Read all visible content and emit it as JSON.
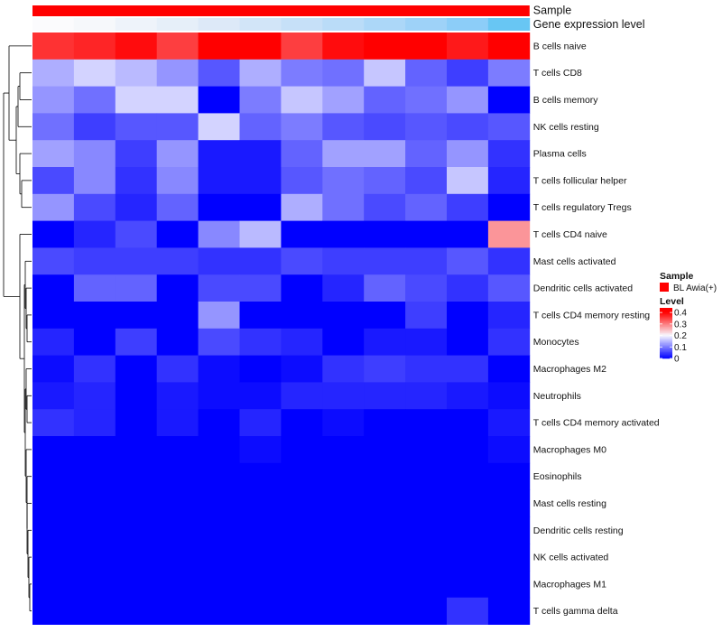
{
  "chart_data": {
    "type": "heatmap",
    "annotation_tracks": [
      {
        "name": "Sample",
        "legend_entry": "BL Awia(+)",
        "color": "#ff0000"
      },
      {
        "name": "Gene expression level",
        "colors": [
          "#fbfbfd",
          "#f6f8fb",
          "#eef3fa",
          "#e6eff9",
          "#dde9f8",
          "#d2e5f8",
          "#c6e0f8",
          "#badcf8",
          "#acd7f8",
          "#9ed2f8",
          "#8ccdf8",
          "#68c6f3"
        ]
      }
    ],
    "rows": [
      "B cells naive",
      "T cells CD8",
      "B cells memory",
      "NK cells resting",
      "Plasma cells",
      "T cells follicular helper",
      "T cells regulatory  Tregs",
      "T cells CD4 naive",
      "Mast cells activated",
      "Dendritic cells activated",
      "T cells CD4 memory resting",
      "Monocytes",
      "Macrophages M2",
      "Neutrophils",
      "T cells CD4 memory activated",
      "Macrophages M0",
      "Eosinophils",
      "Mast cells resting",
      "Dendritic cells resting",
      "NK cells activated",
      "Macrophages M1",
      "T cells gamma delta"
    ],
    "n_columns": 12,
    "values": [
      [
        0.36,
        0.37,
        0.39,
        0.35,
        0.44,
        0.44,
        0.35,
        0.39,
        0.42,
        0.44,
        0.38,
        0.4
      ],
      [
        0.14,
        0.17,
        0.15,
        0.12,
        0.07,
        0.14,
        0.1,
        0.09,
        0.16,
        0.08,
        0.05,
        0.1
      ],
      [
        0.12,
        0.09,
        0.17,
        0.17,
        0.0,
        0.1,
        0.16,
        0.13,
        0.08,
        0.09,
        0.12,
        0.0
      ],
      [
        0.09,
        0.05,
        0.07,
        0.07,
        0.17,
        0.08,
        0.1,
        0.07,
        0.06,
        0.07,
        0.06,
        0.07
      ],
      [
        0.13,
        0.11,
        0.05,
        0.12,
        0.02,
        0.02,
        0.08,
        0.13,
        0.13,
        0.08,
        0.12,
        0.04
      ],
      [
        0.06,
        0.11,
        0.04,
        0.11,
        0.02,
        0.02,
        0.07,
        0.09,
        0.08,
        0.06,
        0.16,
        0.03
      ],
      [
        0.12,
        0.06,
        0.03,
        0.08,
        0.0,
        0.0,
        0.14,
        0.09,
        0.06,
        0.08,
        0.05,
        0.0
      ],
      [
        0.0,
        0.03,
        0.06,
        0.0,
        0.11,
        0.15,
        0.0,
        0.0,
        0.0,
        0.0,
        0.0,
        0.28
      ],
      [
        0.06,
        0.05,
        0.05,
        0.05,
        0.04,
        0.04,
        0.06,
        0.05,
        0.05,
        0.05,
        0.07,
        0.04
      ],
      [
        0.0,
        0.08,
        0.08,
        0.0,
        0.06,
        0.06,
        0.0,
        0.03,
        0.08,
        0.06,
        0.04,
        0.07
      ],
      [
        0.0,
        0.0,
        0.0,
        0.0,
        0.12,
        0.0,
        0.0,
        0.0,
        0.0,
        0.05,
        0.0,
        0.03
      ],
      [
        0.03,
        0.0,
        0.05,
        0.0,
        0.06,
        0.04,
        0.03,
        0.0,
        0.02,
        0.02,
        0.0,
        0.04
      ],
      [
        0.01,
        0.04,
        0.0,
        0.04,
        0.01,
        0.0,
        0.01,
        0.04,
        0.05,
        0.04,
        0.04,
        0.0
      ],
      [
        0.02,
        0.03,
        0.0,
        0.02,
        0.01,
        0.01,
        0.03,
        0.03,
        0.03,
        0.03,
        0.02,
        0.01
      ],
      [
        0.04,
        0.03,
        0.0,
        0.02,
        0.0,
        0.03,
        0.0,
        0.01,
        0.0,
        0.0,
        0.0,
        0.02
      ],
      [
        0.0,
        0.0,
        0.0,
        0.0,
        0.0,
        0.01,
        0.0,
        0.0,
        0.0,
        0.0,
        0.0,
        0.01
      ],
      [
        0.0,
        0.0,
        0.0,
        0.0,
        0.0,
        0.0,
        0.0,
        0.0,
        0.0,
        0.0,
        0.0,
        0.0
      ],
      [
        0.0,
        0.0,
        0.0,
        0.0,
        0.0,
        0.0,
        0.0,
        0.0,
        0.0,
        0.0,
        0.0,
        0.0
      ],
      [
        0.0,
        0.0,
        0.0,
        0.0,
        0.0,
        0.0,
        0.0,
        0.0,
        0.0,
        0.0,
        0.0,
        0.0
      ],
      [
        0.0,
        0.0,
        0.0,
        0.0,
        0.0,
        0.0,
        0.0,
        0.0,
        0.0,
        0.0,
        0.0,
        0.0
      ],
      [
        0.0,
        0.0,
        0.0,
        0.0,
        0.0,
        0.0,
        0.0,
        0.0,
        0.0,
        0.0,
        0.0,
        0.0
      ],
      [
        0.0,
        0.0,
        0.0,
        0.0,
        0.0,
        0.0,
        0.0,
        0.0,
        0.0,
        0.0,
        0.04,
        0.0
      ]
    ],
    "color_scale": {
      "stops": [
        0,
        0.2,
        0.4
      ],
      "colors": [
        "#0000ff",
        "#f8f8ff",
        "#ff0000"
      ],
      "range": [
        0,
        0.44
      ]
    },
    "legend": {
      "sample_title": "Sample",
      "sample_entry": "BL Awia(+)",
      "level_title": "Level",
      "level_ticks": [
        "0.4",
        "0.3",
        "0.2",
        "0.1",
        "0"
      ],
      "level_tick_values": [
        0.4,
        0.3,
        0.2,
        0.1,
        0
      ]
    },
    "dendrogram": "row clustering tree on left side"
  }
}
